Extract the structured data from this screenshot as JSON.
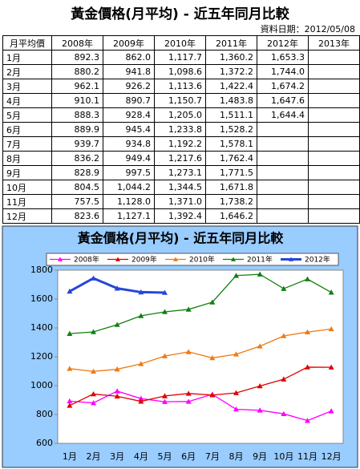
{
  "header": {
    "title": "黃金價格(月平均) - 近五年同月比較",
    "date": "資料日期：2012/05/08"
  },
  "table": {
    "columns": [
      "月平均價",
      "2008年",
      "2009年",
      "2010年",
      "2011年",
      "2012年",
      "2013年"
    ],
    "rows": [
      [
        "1月",
        "892.3",
        "862.0",
        "1,117.7",
        "1,360.2",
        "1,653.3"
      ],
      [
        "2月",
        "880.2",
        "941.8",
        "1,098.6",
        "1,372.2",
        "1,744.0"
      ],
      [
        "3月",
        "962.1",
        "926.2",
        "1,113.6",
        "1,422.4",
        "1,674.2"
      ],
      [
        "4月",
        "910.1",
        "890.7",
        "1,150.7",
        "1,483.8",
        "1,647.6"
      ],
      [
        "5月",
        "888.3",
        "928.4",
        "1,205.0",
        "1,511.1",
        "1,644.4"
      ],
      [
        "6月",
        "889.9",
        "945.4",
        "1,233.8",
        "1,528.2"
      ],
      [
        "7月",
        "939.7",
        "934.8",
        "1,192.2",
        "1,578.1"
      ],
      [
        "8月",
        "836.2",
        "949.4",
        "1,217.6",
        "1,762.4"
      ],
      [
        "9月",
        "828.9",
        "997.5",
        "1,273.1",
        "1,771.5"
      ],
      [
        "10月",
        "804.5",
        "1,044.2",
        "1,344.5",
        "1,671.8"
      ],
      [
        "11月",
        "757.5",
        "1,128.0",
        "1,371.0",
        "1,738.2"
      ],
      [
        "12月",
        "823.6",
        "1,127.1",
        "1,392.4",
        "1,646.2"
      ]
    ]
  },
  "chart_data": {
    "type": "line",
    "title": "黃金價格(月平均) - 近五年同月比較",
    "categories": [
      "1月",
      "2月",
      "3月",
      "4月",
      "5月",
      "6月",
      "7月",
      "8月",
      "9月",
      "10月",
      "11月",
      "12月"
    ],
    "series": [
      {
        "name": "2008年",
        "color": "#ff00ff",
        "values": [
          892.3,
          880.2,
          962.1,
          910.1,
          888.3,
          889.9,
          939.7,
          836.2,
          828.9,
          804.5,
          757.5,
          823.6
        ]
      },
      {
        "name": "2009年",
        "color": "#e00000",
        "values": [
          862.0,
          941.8,
          926.2,
          890.7,
          928.4,
          945.4,
          934.8,
          949.4,
          997.5,
          1044.2,
          1128.0,
          1127.1
        ]
      },
      {
        "name": "2010年",
        "color": "#f07a10",
        "values": [
          1117.7,
          1098.6,
          1113.6,
          1150.7,
          1205.0,
          1233.8,
          1192.2,
          1217.6,
          1273.1,
          1344.5,
          1371.0,
          1392.4
        ]
      },
      {
        "name": "2011年",
        "color": "#108010",
        "values": [
          1360.2,
          1372.2,
          1422.4,
          1483.8,
          1511.1,
          1528.2,
          1578.1,
          1762.4,
          1771.5,
          1671.8,
          1738.2,
          1646.2
        ]
      },
      {
        "name": "2012年",
        "color": "#2548d8",
        "values": [
          1653.3,
          1744.0,
          1674.2,
          1647.6,
          1644.4,
          null,
          null,
          null,
          null,
          null,
          null,
          null
        ]
      }
    ],
    "ylim": [
      600,
      1800
    ],
    "yticks": [
      600,
      800,
      1000,
      1200,
      1400,
      1600,
      1800
    ],
    "grid": false,
    "legend": "top"
  }
}
